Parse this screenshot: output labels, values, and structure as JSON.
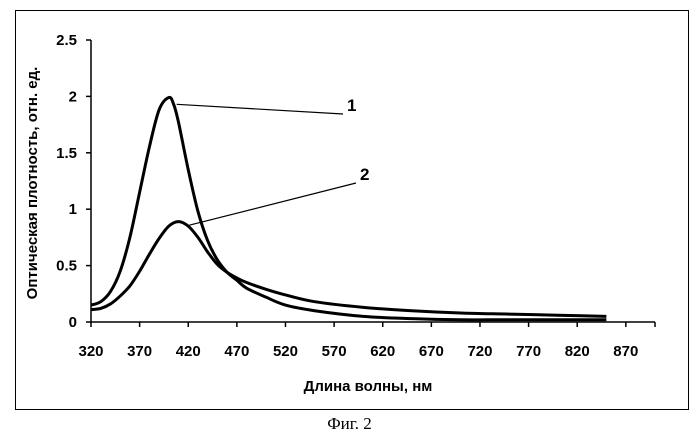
{
  "caption": "Фиг. 2",
  "chart_data": {
    "type": "line",
    "title": "",
    "xlabel": "Длина волны, нм",
    "ylabel": "Оптическая плотность, отн. ед.",
    "xlim": [
      320,
      900
    ],
    "ylim": [
      0,
      2.5
    ],
    "x_ticks": [
      "320",
      "370",
      "420",
      "470",
      "520",
      "570",
      "620",
      "670",
      "720",
      "770",
      "820",
      "870"
    ],
    "y_ticks": [
      "0",
      "0.5",
      "1",
      "1.5",
      "2",
      "2.5"
    ],
    "grid": false,
    "legend": "none",
    "series": [
      {
        "name": "1",
        "x": [
          320,
          330,
          340,
          350,
          360,
          370,
          380,
          390,
          400,
          405,
          410,
          420,
          430,
          440,
          450,
          460,
          470,
          480,
          500,
          520,
          550,
          600,
          650,
          700,
          750,
          800,
          850
        ],
        "y": [
          0.15,
          0.18,
          0.27,
          0.45,
          0.75,
          1.15,
          1.55,
          1.88,
          1.99,
          1.93,
          1.77,
          1.35,
          0.98,
          0.72,
          0.55,
          0.44,
          0.37,
          0.3,
          0.22,
          0.15,
          0.1,
          0.05,
          0.03,
          0.02,
          0.02,
          0.02,
          0.02
        ]
      },
      {
        "name": "2",
        "x": [
          320,
          330,
          340,
          350,
          360,
          370,
          380,
          390,
          400,
          410,
          420,
          430,
          440,
          450,
          460,
          470,
          480,
          500,
          520,
          550,
          600,
          650,
          700,
          750,
          800,
          850
        ],
        "y": [
          0.11,
          0.12,
          0.16,
          0.23,
          0.32,
          0.45,
          0.6,
          0.74,
          0.85,
          0.89,
          0.85,
          0.75,
          0.62,
          0.51,
          0.44,
          0.39,
          0.35,
          0.29,
          0.24,
          0.18,
          0.13,
          0.1,
          0.08,
          0.07,
          0.06,
          0.05
        ]
      }
    ],
    "annotations": [
      {
        "text": "1",
        "points_to_series": "1",
        "at_x": 405
      },
      {
        "text": "2",
        "points_to_series": "2",
        "at_x": 418
      }
    ]
  }
}
